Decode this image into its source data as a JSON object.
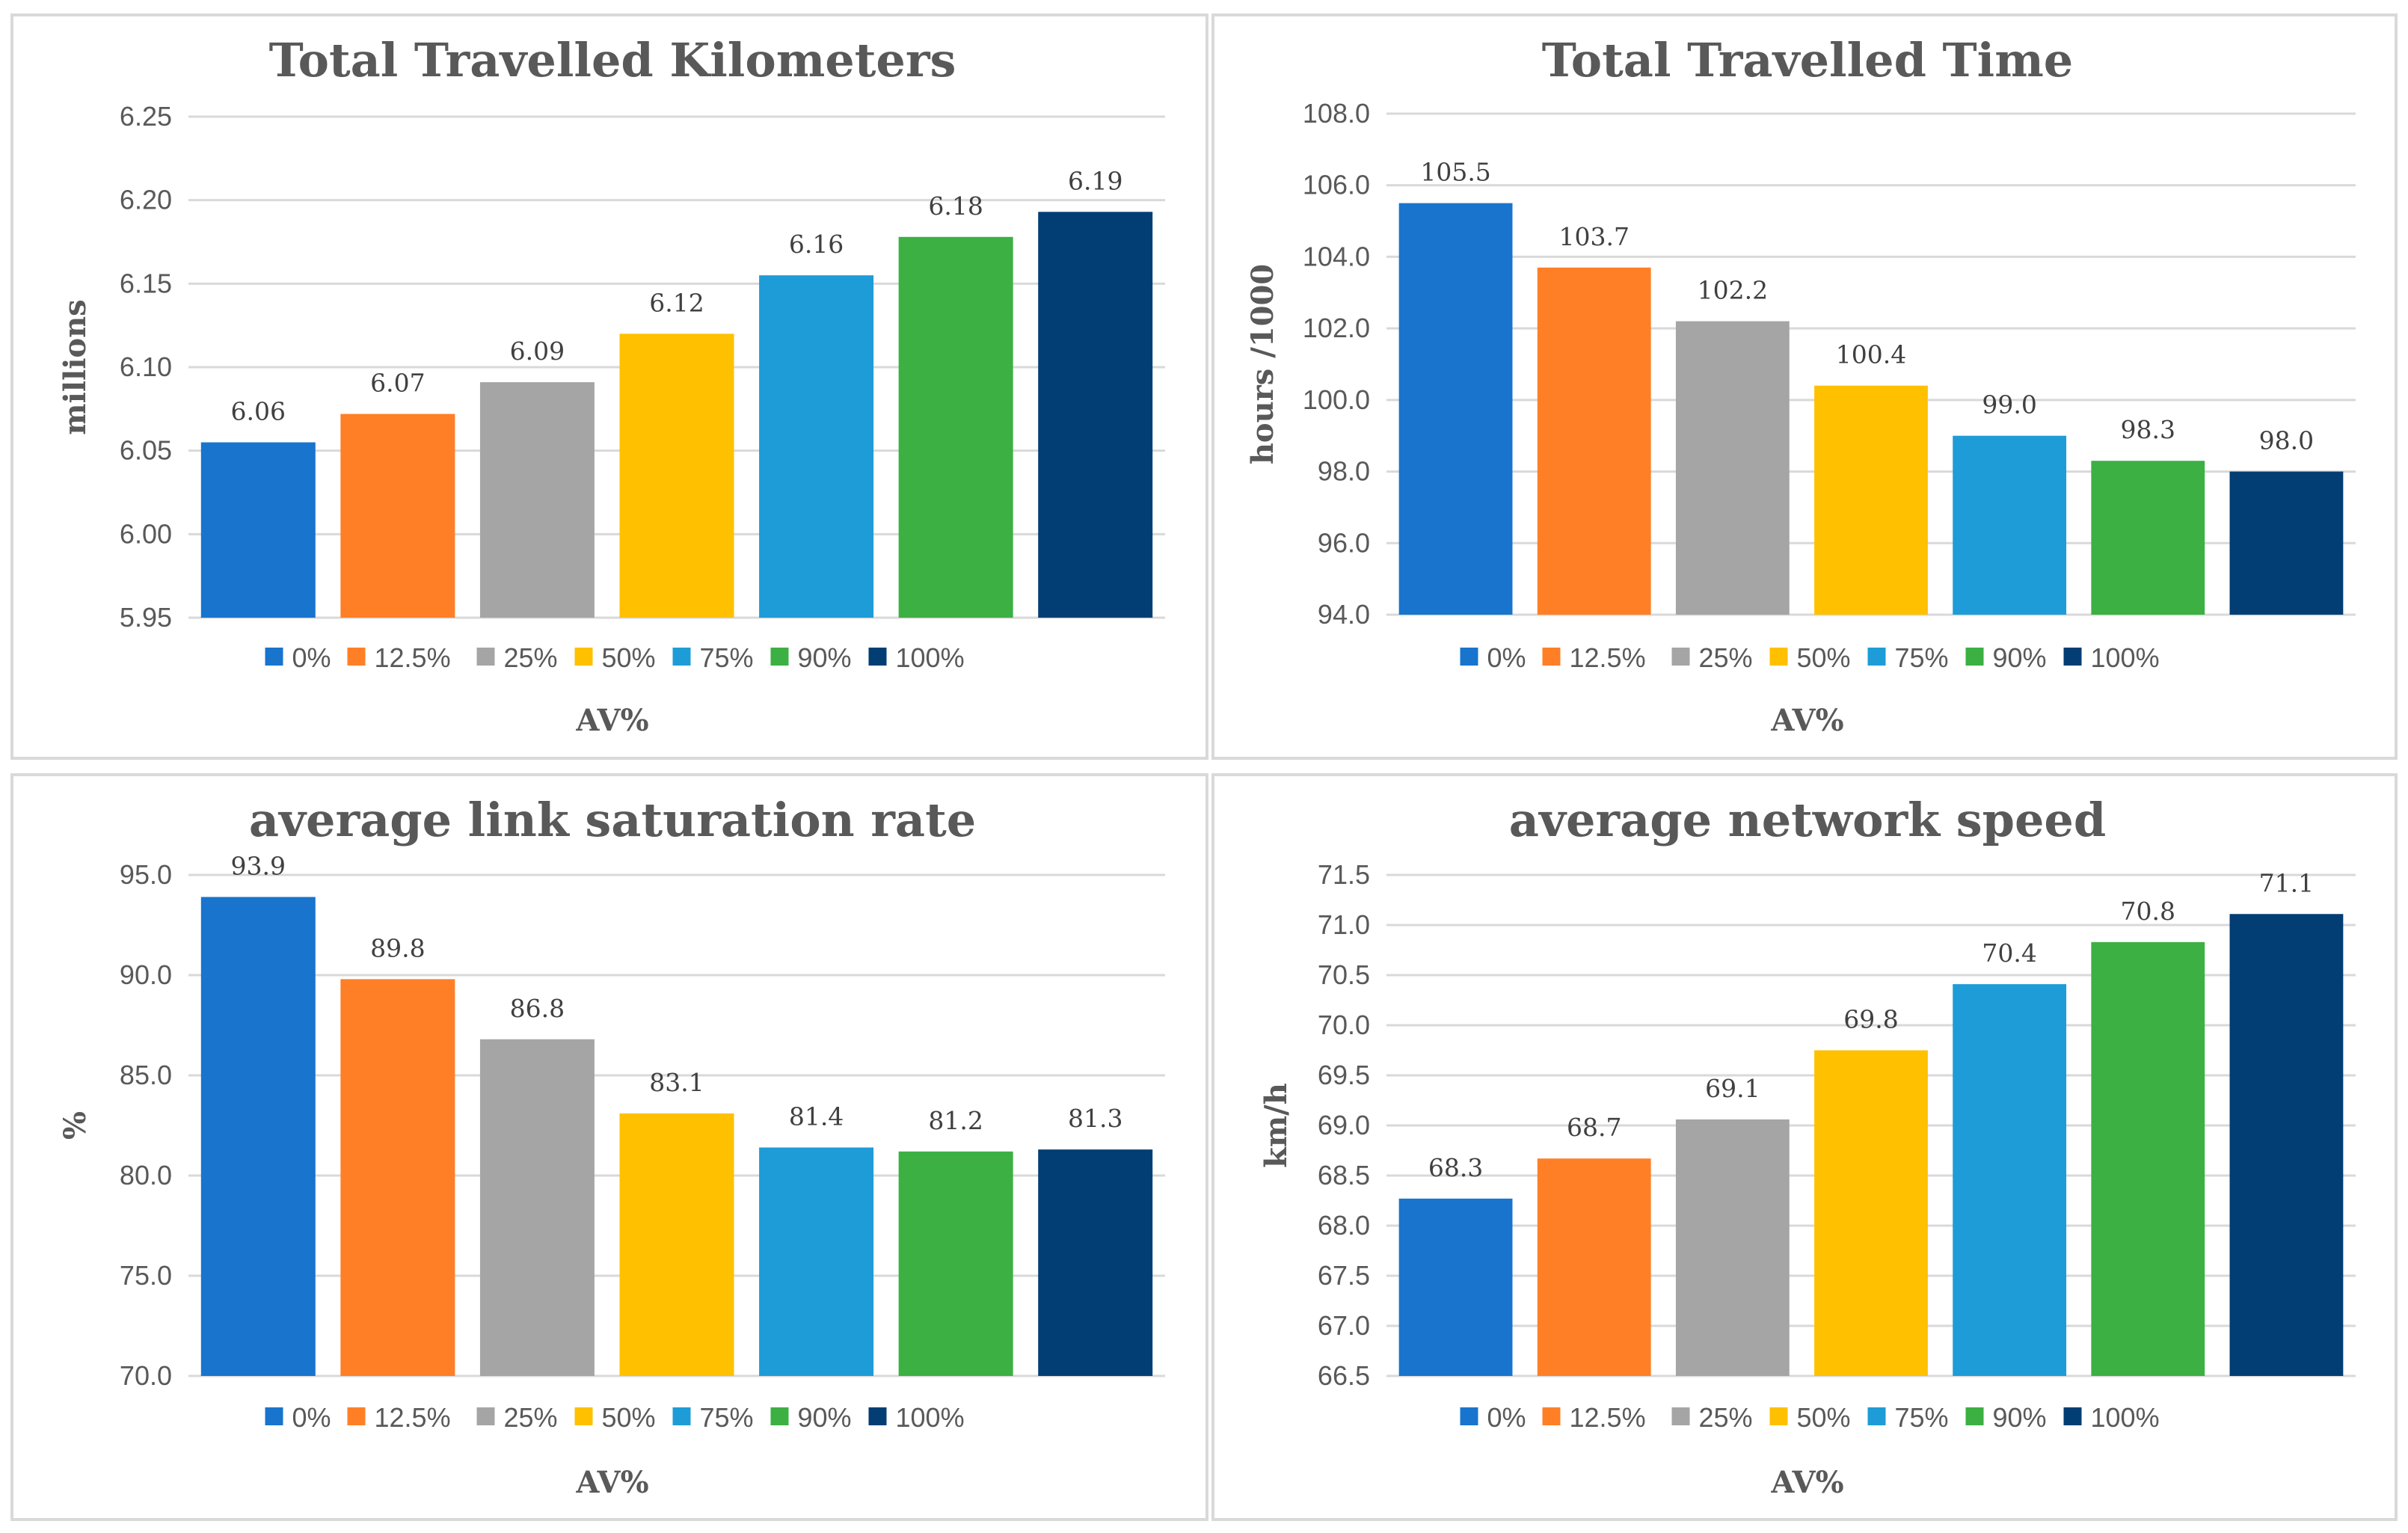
{
  "colors": {
    "0%": "#1874CD",
    "12.5%": "#FF7F27",
    "25%": "#A5A5A5",
    "50%": "#FFC000",
    "75%": "#1E9CD7",
    "90%": "#3CB043",
    "100%": "#023E73"
  },
  "chart_data": [
    {
      "type": "bar",
      "title": "Total Travelled Kilometers",
      "xlabel": "AV%",
      "ylabel": "millions",
      "categories": [
        "0%",
        "12.5%",
        "25%",
        "50%",
        "75%",
        "90%",
        "100%"
      ],
      "values": [
        6.055,
        6.072,
        6.091,
        6.12,
        6.155,
        6.178,
        6.193
      ],
      "data_labels": [
        "6.06",
        "6.07",
        "6.09",
        "6.12",
        "6.16",
        "6.18",
        "6.19"
      ],
      "ylim": [
        5.95,
        6.25
      ],
      "yticks": [
        "5.95",
        "6.00",
        "6.05",
        "6.10",
        "6.15",
        "6.20",
        "6.25"
      ],
      "legend": "bottom",
      "grid": true
    },
    {
      "type": "bar",
      "title": "Total Travelled Time",
      "xlabel": "AV%",
      "ylabel": "hours /1000",
      "categories": [
        "0%",
        "12.5%",
        "25%",
        "50%",
        "75%",
        "90%",
        "100%"
      ],
      "values": [
        105.5,
        103.7,
        102.2,
        100.4,
        99.0,
        98.3,
        98.0
      ],
      "data_labels": [
        "105.5",
        "103.7",
        "102.2",
        "100.4",
        "99.0",
        "98.3",
        "98.0"
      ],
      "ylim": [
        94.0,
        108.0
      ],
      "yticks": [
        "94.0",
        "96.0",
        "98.0",
        "100.0",
        "102.0",
        "104.0",
        "106.0",
        "108.0"
      ],
      "legend": "bottom",
      "grid": true
    },
    {
      "type": "bar",
      "title": "average link saturation rate",
      "xlabel": "AV%",
      "ylabel": "%",
      "categories": [
        "0%",
        "12.5%",
        "25%",
        "50%",
        "75%",
        "90%",
        "100%"
      ],
      "values": [
        93.9,
        89.8,
        86.8,
        83.1,
        81.4,
        81.2,
        81.3
      ],
      "data_labels": [
        "93.9",
        "89.8",
        "86.8",
        "83.1",
        "81.4",
        "81.2",
        "81.3"
      ],
      "ylim": [
        70.0,
        95.0
      ],
      "yticks": [
        "70.0",
        "75.0",
        "80.0",
        "85.0",
        "90.0",
        "95.0"
      ],
      "legend": "bottom",
      "grid": true
    },
    {
      "type": "bar",
      "title": "average network speed",
      "xlabel": "AV%",
      "ylabel": "km/h",
      "categories": [
        "0%",
        "12.5%",
        "25%",
        "50%",
        "75%",
        "90%",
        "100%"
      ],
      "values": [
        68.27,
        68.67,
        69.06,
        69.75,
        70.41,
        70.83,
        71.11
      ],
      "data_labels": [
        "68.3",
        "68.7",
        "69.1",
        "69.8",
        "70.4",
        "70.8",
        "71.1"
      ],
      "ylim": [
        66.5,
        71.5
      ],
      "yticks": [
        "66.5",
        "67.0",
        "67.5",
        "68.0",
        "68.5",
        "69.0",
        "69.5",
        "70.0",
        "70.5",
        "71.0",
        "71.5"
      ],
      "legend": "bottom",
      "grid": true
    }
  ]
}
